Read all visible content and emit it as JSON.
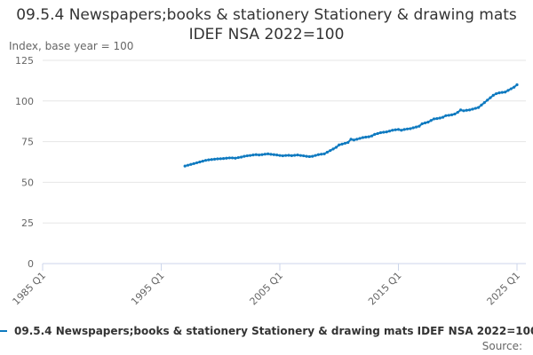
{
  "chart_data": {
    "type": "line",
    "title": "09.5.4 Newspapers;books & stationery Stationery & drawing mats IDEF NSA 2022=100",
    "subtitle": "Index, base year = 100",
    "source": "Source:",
    "categories": [
      "1985 Q1",
      "1985 Q2",
      "1985 Q3",
      "1985 Q4",
      "1986 Q1",
      "1986 Q2",
      "1986 Q3",
      "1986 Q4",
      "1987 Q1",
      "1987 Q2",
      "1987 Q3",
      "1987 Q4",
      "1988 Q1",
      "1988 Q2",
      "1988 Q3",
      "1988 Q4",
      "1989 Q1",
      "1989 Q2",
      "1989 Q3",
      "1989 Q4",
      "1990 Q1",
      "1990 Q2",
      "1990 Q3",
      "1990 Q4",
      "1991 Q1",
      "1991 Q2",
      "1991 Q3",
      "1991 Q4",
      "1992 Q1",
      "1992 Q2",
      "1992 Q3",
      "1992 Q4",
      "1993 Q1",
      "1993 Q2",
      "1993 Q3",
      "1993 Q4",
      "1994 Q1",
      "1994 Q2",
      "1994 Q3",
      "1994 Q4",
      "1995 Q1",
      "1995 Q2",
      "1995 Q3",
      "1995 Q4",
      "1996 Q1",
      "1996 Q2",
      "1996 Q3",
      "1996 Q4",
      "1997 Q1",
      "1997 Q2",
      "1997 Q3",
      "1997 Q4",
      "1998 Q1",
      "1998 Q2",
      "1998 Q3",
      "1998 Q4",
      "1999 Q1",
      "1999 Q2",
      "1999 Q3",
      "1999 Q4",
      "2000 Q1",
      "2000 Q2",
      "2000 Q3",
      "2000 Q4",
      "2001 Q1",
      "2001 Q2",
      "2001 Q3",
      "2001 Q4",
      "2002 Q1",
      "2002 Q2",
      "2002 Q3",
      "2002 Q4",
      "2003 Q1",
      "2003 Q2",
      "2003 Q3",
      "2003 Q4",
      "2004 Q1",
      "2004 Q2",
      "2004 Q3",
      "2004 Q4",
      "2005 Q1",
      "2005 Q2",
      "2005 Q3",
      "2005 Q4",
      "2006 Q1",
      "2006 Q2",
      "2006 Q3",
      "2006 Q4",
      "2007 Q1",
      "2007 Q2",
      "2007 Q3",
      "2007 Q4",
      "2008 Q1",
      "2008 Q2",
      "2008 Q3",
      "2008 Q4",
      "2009 Q1",
      "2009 Q2",
      "2009 Q3",
      "2009 Q4",
      "2010 Q1",
      "2010 Q2",
      "2010 Q3",
      "2010 Q4",
      "2011 Q1",
      "2011 Q2",
      "2011 Q3",
      "2011 Q4",
      "2012 Q1",
      "2012 Q2",
      "2012 Q3",
      "2012 Q4",
      "2013 Q1",
      "2013 Q2",
      "2013 Q3",
      "2013 Q4",
      "2014 Q1",
      "2014 Q2",
      "2014 Q3",
      "2014 Q4",
      "2015 Q1",
      "2015 Q2",
      "2015 Q3",
      "2015 Q4",
      "2016 Q1",
      "2016 Q2",
      "2016 Q3",
      "2016 Q4",
      "2017 Q1",
      "2017 Q2",
      "2017 Q3",
      "2017 Q4",
      "2018 Q1",
      "2018 Q2",
      "2018 Q3",
      "2018 Q4",
      "2019 Q1",
      "2019 Q2",
      "2019 Q3",
      "2019 Q4",
      "2020 Q1",
      "2020 Q2",
      "2020 Q3",
      "2020 Q4",
      "2021 Q1",
      "2021 Q2",
      "2021 Q3",
      "2021 Q4",
      "2022 Q1",
      "2022 Q2",
      "2022 Q3",
      "2022 Q4",
      "2023 Q1",
      "2023 Q2",
      "2023 Q3",
      "2023 Q4",
      "2024 Q1",
      "2024 Q2",
      "2024 Q3",
      "2024 Q4",
      "2025 Q1"
    ],
    "series": [
      {
        "name": "09.5.4 Newspapers;books & stationery Stationery & drawing mats IDEF NSA 2022=100",
        "color": "#0f7ac0",
        "values": [
          null,
          null,
          null,
          null,
          null,
          null,
          null,
          null,
          null,
          null,
          null,
          null,
          null,
          null,
          null,
          null,
          null,
          null,
          null,
          null,
          null,
          null,
          null,
          null,
          null,
          null,
          null,
          null,
          null,
          null,
          null,
          null,
          null,
          null,
          null,
          null,
          null,
          null,
          null,
          null,
          null,
          null,
          null,
          null,
          null,
          null,
          null,
          null,
          60,
          60.5,
          61,
          61.5,
          62,
          62.5,
          63,
          63.5,
          63.8,
          64,
          64.2,
          64.4,
          64.5,
          64.6,
          64.8,
          65,
          65,
          64.8,
          65.2,
          65.5,
          66,
          66.3,
          66.5,
          66.8,
          67,
          66.8,
          67,
          67.3,
          67.5,
          67.2,
          67,
          66.8,
          66.5,
          66.3,
          66.5,
          66.6,
          66.4,
          66.6,
          66.8,
          66.5,
          66.3,
          66,
          65.8,
          66,
          66.5,
          67,
          67.3,
          67.5,
          68.5,
          69.5,
          70.5,
          71.5,
          73,
          73.5,
          74,
          74.5,
          76.5,
          76,
          76.5,
          77,
          77.5,
          77.8,
          78,
          78.5,
          79.5,
          80,
          80.5,
          80.8,
          81,
          81.5,
          82,
          82.3,
          82.5,
          82,
          82.5,
          82.8,
          83,
          83.5,
          84,
          84.5,
          86,
          86.5,
          87,
          88,
          89,
          89.2,
          89.5,
          90,
          91,
          91.2,
          91.5,
          92,
          93,
          94.5,
          94,
          94.3,
          94.5,
          95,
          95.5,
          96,
          97.5,
          99,
          100.5,
          102,
          103.5,
          104.5,
          105,
          105.3,
          105.5,
          106.5,
          107.5,
          108.5,
          110
        ]
      }
    ],
    "ylim": [
      0,
      125
    ],
    "yticks": [
      0,
      25,
      50,
      75,
      100,
      125
    ],
    "grid": true
  }
}
